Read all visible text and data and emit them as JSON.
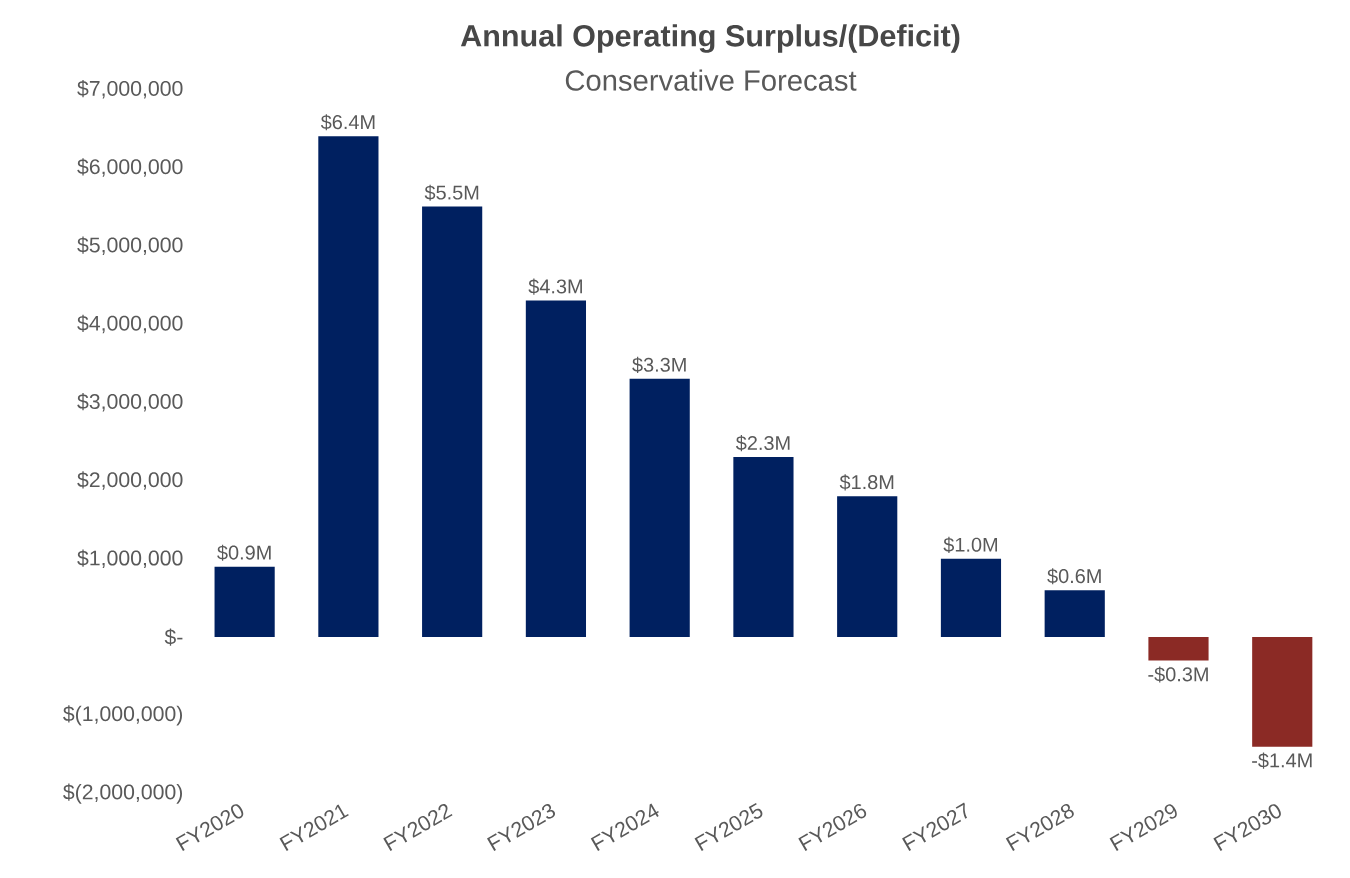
{
  "chart_data": {
    "type": "bar",
    "title": "Annual Operating Surplus/(Deficit)",
    "subtitle": "Conservative Forecast",
    "categories": [
      "FY2020",
      "FY2021",
      "FY2022",
      "FY2023",
      "FY2024",
      "FY2025",
      "FY2026",
      "FY2027",
      "FY2028",
      "FY2029",
      "FY2030"
    ],
    "values": [
      900000,
      6400000,
      5500000,
      4300000,
      3300000,
      2300000,
      1800000,
      1000000,
      600000,
      -300000,
      -1400000
    ],
    "value_labels": [
      "$0.9M",
      "$6.4M",
      "$5.5M",
      "$4.3M",
      "$3.3M",
      "$2.3M",
      "$1.8M",
      "$1.0M",
      "$0.6M",
      "-$0.3M",
      "-$1.4M"
    ],
    "colors": [
      "#002060",
      "#002060",
      "#002060",
      "#002060",
      "#002060",
      "#002060",
      "#002060",
      "#002060",
      "#002060",
      "#8b2a25",
      "#8b2a25"
    ],
    "ylim": [
      -2000000,
      7000000
    ],
    "yticks": [
      {
        "value": -2000000,
        "label": "$(2,000,000)"
      },
      {
        "value": -1000000,
        "label": "$(1,000,000)"
      },
      {
        "value": 0,
        "label": "$-"
      },
      {
        "value": 1000000,
        "label": "$1,000,000"
      },
      {
        "value": 2000000,
        "label": "$2,000,000"
      },
      {
        "value": 3000000,
        "label": "$3,000,000"
      },
      {
        "value": 4000000,
        "label": "$4,000,000"
      },
      {
        "value": 5000000,
        "label": "$5,000,000"
      },
      {
        "value": 6000000,
        "label": "$6,000,000"
      },
      {
        "value": 7000000,
        "label": "$7,000,000"
      }
    ]
  }
}
